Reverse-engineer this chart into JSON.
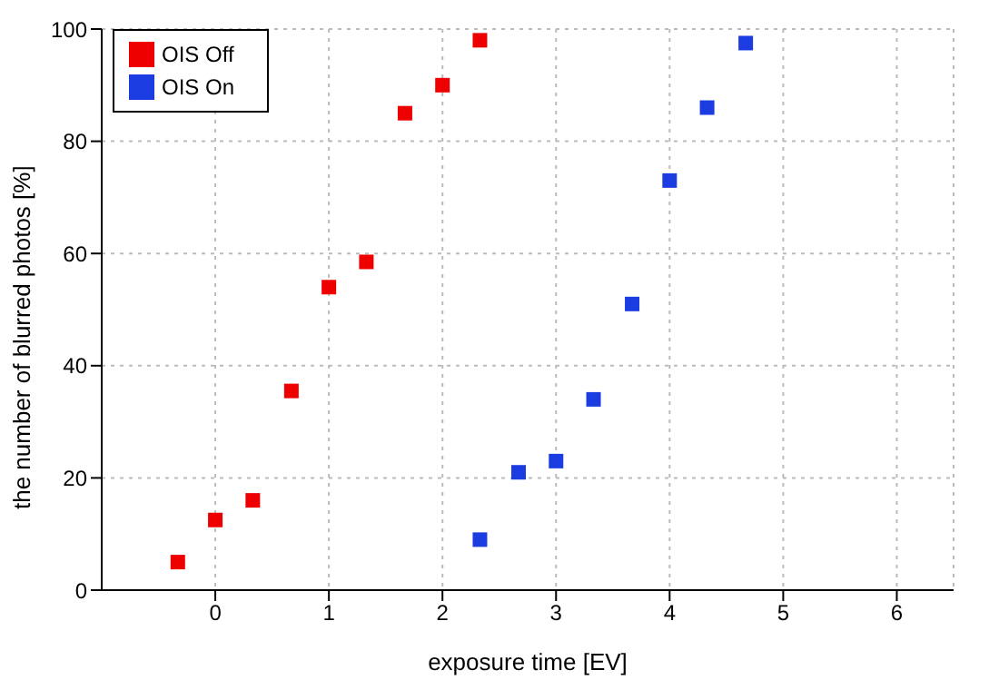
{
  "chart_data": {
    "type": "scatter",
    "xlabel": "exposure time [EV]",
    "ylabel": "the number of blurred photos [%]",
    "xlim": [
      -1,
      6.5
    ],
    "xticks": [
      0,
      1,
      2,
      3,
      4,
      5,
      6
    ],
    "ylim": [
      0,
      100
    ],
    "yticks": [
      0,
      20,
      40,
      60,
      80,
      100
    ],
    "grid": true,
    "legend": "top left",
    "marker": "square",
    "series": [
      {
        "name": "OIS Off",
        "color": "#ee0000",
        "x": [
          -0.33,
          0,
          0.33,
          0.67,
          1,
          1.33,
          1.67,
          2,
          2.33
        ],
        "values": [
          5,
          12.5,
          16,
          35.5,
          54,
          58.5,
          85,
          90,
          98
        ]
      },
      {
        "name": "OIS On",
        "color": "#1a3ce0",
        "x": [
          2.33,
          2.67,
          3,
          3.33,
          3.67,
          4,
          4.33,
          4.67
        ],
        "values": [
          9,
          21,
          23,
          34,
          51,
          73,
          86,
          97.5
        ]
      }
    ]
  }
}
